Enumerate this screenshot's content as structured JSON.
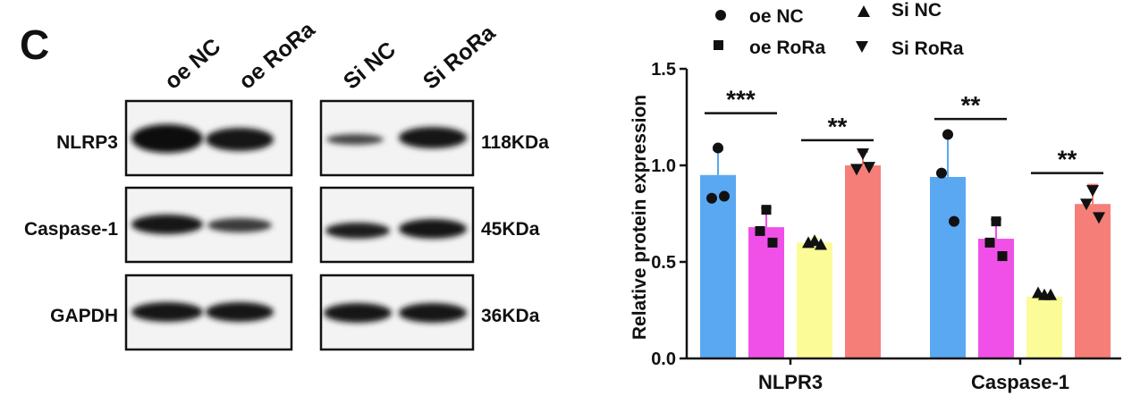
{
  "panel_letter": "C",
  "blot": {
    "lane_labels": [
      "oe NC",
      "oe RoRa",
      "Si NC",
      "Si RoRa"
    ],
    "rows": [
      {
        "protein": "NLRP3",
        "kda": "118KDa"
      },
      {
        "protein": "Caspase-1",
        "kda": "45KDa"
      },
      {
        "protein": "GAPDH",
        "kda": "36KDa"
      }
    ]
  },
  "legend": {
    "items": [
      {
        "label": "oe NC",
        "marker": "circle"
      },
      {
        "label": "Si NC",
        "marker": "triangle-up"
      },
      {
        "label": "oe RoRa",
        "marker": "square"
      },
      {
        "label": "Si RoRa",
        "marker": "triangle-down"
      }
    ]
  },
  "colors": {
    "oe_nc": "#5aa8f2",
    "oe_rora": "#f050e8",
    "si_nc": "#fbfb98",
    "si_rora": "#f57f78"
  },
  "chart_data": {
    "type": "bar",
    "ylabel": "Relative protein expression",
    "ylim": [
      0,
      1.5
    ],
    "yticks": [
      "0.0",
      "0.5",
      "1.0",
      "1.5"
    ],
    "categories": [
      "NLPR3",
      "Caspase-1"
    ],
    "series": [
      {
        "name": "oe NC",
        "values": [
          0.95,
          0.94
        ],
        "errors": [
          0.13,
          0.22
        ],
        "points": [
          [
            1.09,
            0.83,
            0.84
          ],
          [
            1.16,
            0.96,
            0.71
          ]
        ]
      },
      {
        "name": "oe RoRa",
        "values": [
          0.68,
          0.62
        ],
        "errors": [
          0.1,
          0.1
        ],
        "points": [
          [
            0.77,
            0.66,
            0.6
          ],
          [
            0.71,
            0.6,
            0.53
          ]
        ]
      },
      {
        "name": "Si NC",
        "values": [
          0.6,
          0.32
        ],
        "errors": [
          0.02,
          0.02
        ],
        "points": [
          [
            0.61,
            0.6,
            0.59
          ],
          [
            0.33,
            0.34,
            0.33
          ]
        ]
      },
      {
        "name": "Si RoRa",
        "values": [
          1.0,
          0.8
        ],
        "errors": [
          0.07,
          0.1
        ],
        "points": [
          [
            1.06,
            0.98,
            0.99
          ],
          [
            0.87,
            0.8,
            0.73
          ]
        ]
      }
    ],
    "significance": [
      {
        "label": "***",
        "category": "NLPR3",
        "compare": [
          "oe NC",
          "oe RoRa"
        ]
      },
      {
        "label": "**",
        "category": "NLPR3",
        "compare": [
          "Si NC",
          "Si RoRa"
        ]
      },
      {
        "label": "**",
        "category": "Caspase-1",
        "compare": [
          "oe NC",
          "oe RoRa"
        ]
      },
      {
        "label": "**",
        "category": "Caspase-1",
        "compare": [
          "Si NC",
          "Si RoRa"
        ]
      }
    ]
  }
}
